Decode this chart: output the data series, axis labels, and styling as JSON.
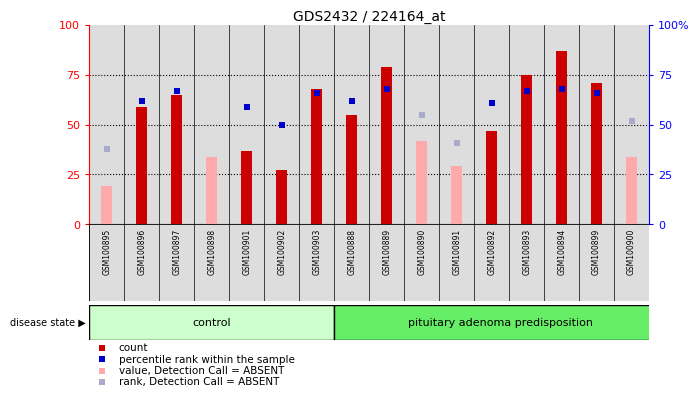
{
  "title": "GDS2432 / 224164_at",
  "samples": [
    "GSM100895",
    "GSM100896",
    "GSM100897",
    "GSM100898",
    "GSM100901",
    "GSM100902",
    "GSM100903",
    "GSM100888",
    "GSM100889",
    "GSM100890",
    "GSM100891",
    "GSM100892",
    "GSM100893",
    "GSM100894",
    "GSM100899",
    "GSM100900"
  ],
  "count": [
    null,
    59,
    65,
    null,
    37,
    27,
    68,
    55,
    79,
    null,
    null,
    47,
    75,
    87,
    71,
    null
  ],
  "percentile_rank": [
    null,
    62,
    67,
    null,
    59,
    50,
    66,
    62,
    68,
    null,
    null,
    61,
    67,
    68,
    66,
    null
  ],
  "value_absent": [
    19,
    null,
    null,
    34,
    null,
    null,
    null,
    null,
    null,
    42,
    29,
    null,
    null,
    null,
    null,
    34
  ],
  "rank_absent": [
    38,
    null,
    null,
    null,
    null,
    null,
    null,
    null,
    null,
    55,
    41,
    null,
    null,
    null,
    null,
    52
  ],
  "control_count": 7,
  "disease_count": 9,
  "control_label": "control",
  "disease_label": "pituitary adenoma predisposition",
  "disease_state_label": "disease state",
  "legend_items": [
    "count",
    "percentile rank within the sample",
    "value, Detection Call = ABSENT",
    "rank, Detection Call = ABSENT"
  ],
  "red_color": "#cc0000",
  "pink_color": "#ffaaaa",
  "blue_color": "#0000cc",
  "lightblue_color": "#aaaacc",
  "control_bg": "#ccffcc",
  "disease_bg": "#66ee66",
  "bar_bg": "#dddddd",
  "ylim": [
    0,
    100
  ],
  "right_ylim": [
    0,
    100
  ],
  "yticks": [
    0,
    25,
    50,
    75,
    100
  ],
  "ytick_labels_left": [
    "0",
    "25",
    "50",
    "75",
    "100"
  ],
  "ytick_labels_right": [
    "0",
    "25",
    "50",
    "75",
    "100%"
  ]
}
